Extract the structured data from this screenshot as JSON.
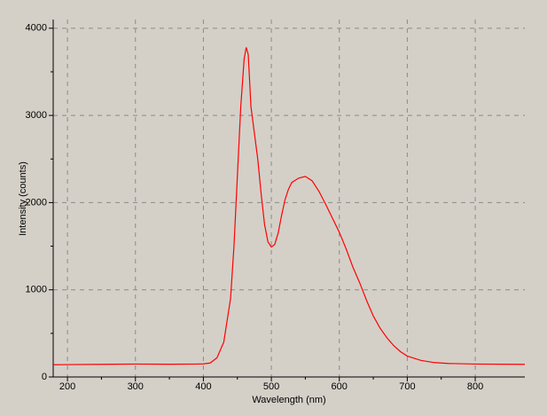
{
  "chart_data": {
    "type": "line",
    "xlabel": "Wavelength (nm)",
    "ylabel": "Intensity (counts)",
    "x": [
      179,
      200,
      250,
      300,
      350,
      390,
      400,
      410,
      420,
      430,
      440,
      445,
      450,
      455,
      460,
      463,
      466,
      470,
      475,
      480,
      485,
      490,
      495,
      500,
      505,
      510,
      515,
      520,
      525,
      530,
      540,
      550,
      560,
      570,
      580,
      590,
      600,
      610,
      620,
      630,
      640,
      650,
      660,
      670,
      680,
      690,
      700,
      720,
      740,
      760,
      800,
      873
    ],
    "series": [
      {
        "name": "Intensity",
        "color": "#ff0000",
        "values": [
          140,
          142,
          145,
          148,
          146,
          148,
          150,
          160,
          220,
          400,
          900,
          1500,
          2300,
          3100,
          3650,
          3780,
          3700,
          3100,
          2800,
          2500,
          2100,
          1750,
          1550,
          1490,
          1520,
          1650,
          1850,
          2030,
          2150,
          2230,
          2280,
          2300,
          2250,
          2130,
          1980,
          1820,
          1660,
          1470,
          1260,
          1080,
          880,
          700,
          560,
          450,
          360,
          290,
          240,
          190,
          165,
          155,
          148,
          145
        ]
      }
    ],
    "xlim": [
      179,
      873
    ],
    "ylim": [
      0,
      4100
    ],
    "xticks": [
      200,
      300,
      400,
      500,
      600,
      700,
      800
    ],
    "yticks": [
      0,
      1000,
      2000,
      3000,
      4000
    ],
    "grid": true
  }
}
